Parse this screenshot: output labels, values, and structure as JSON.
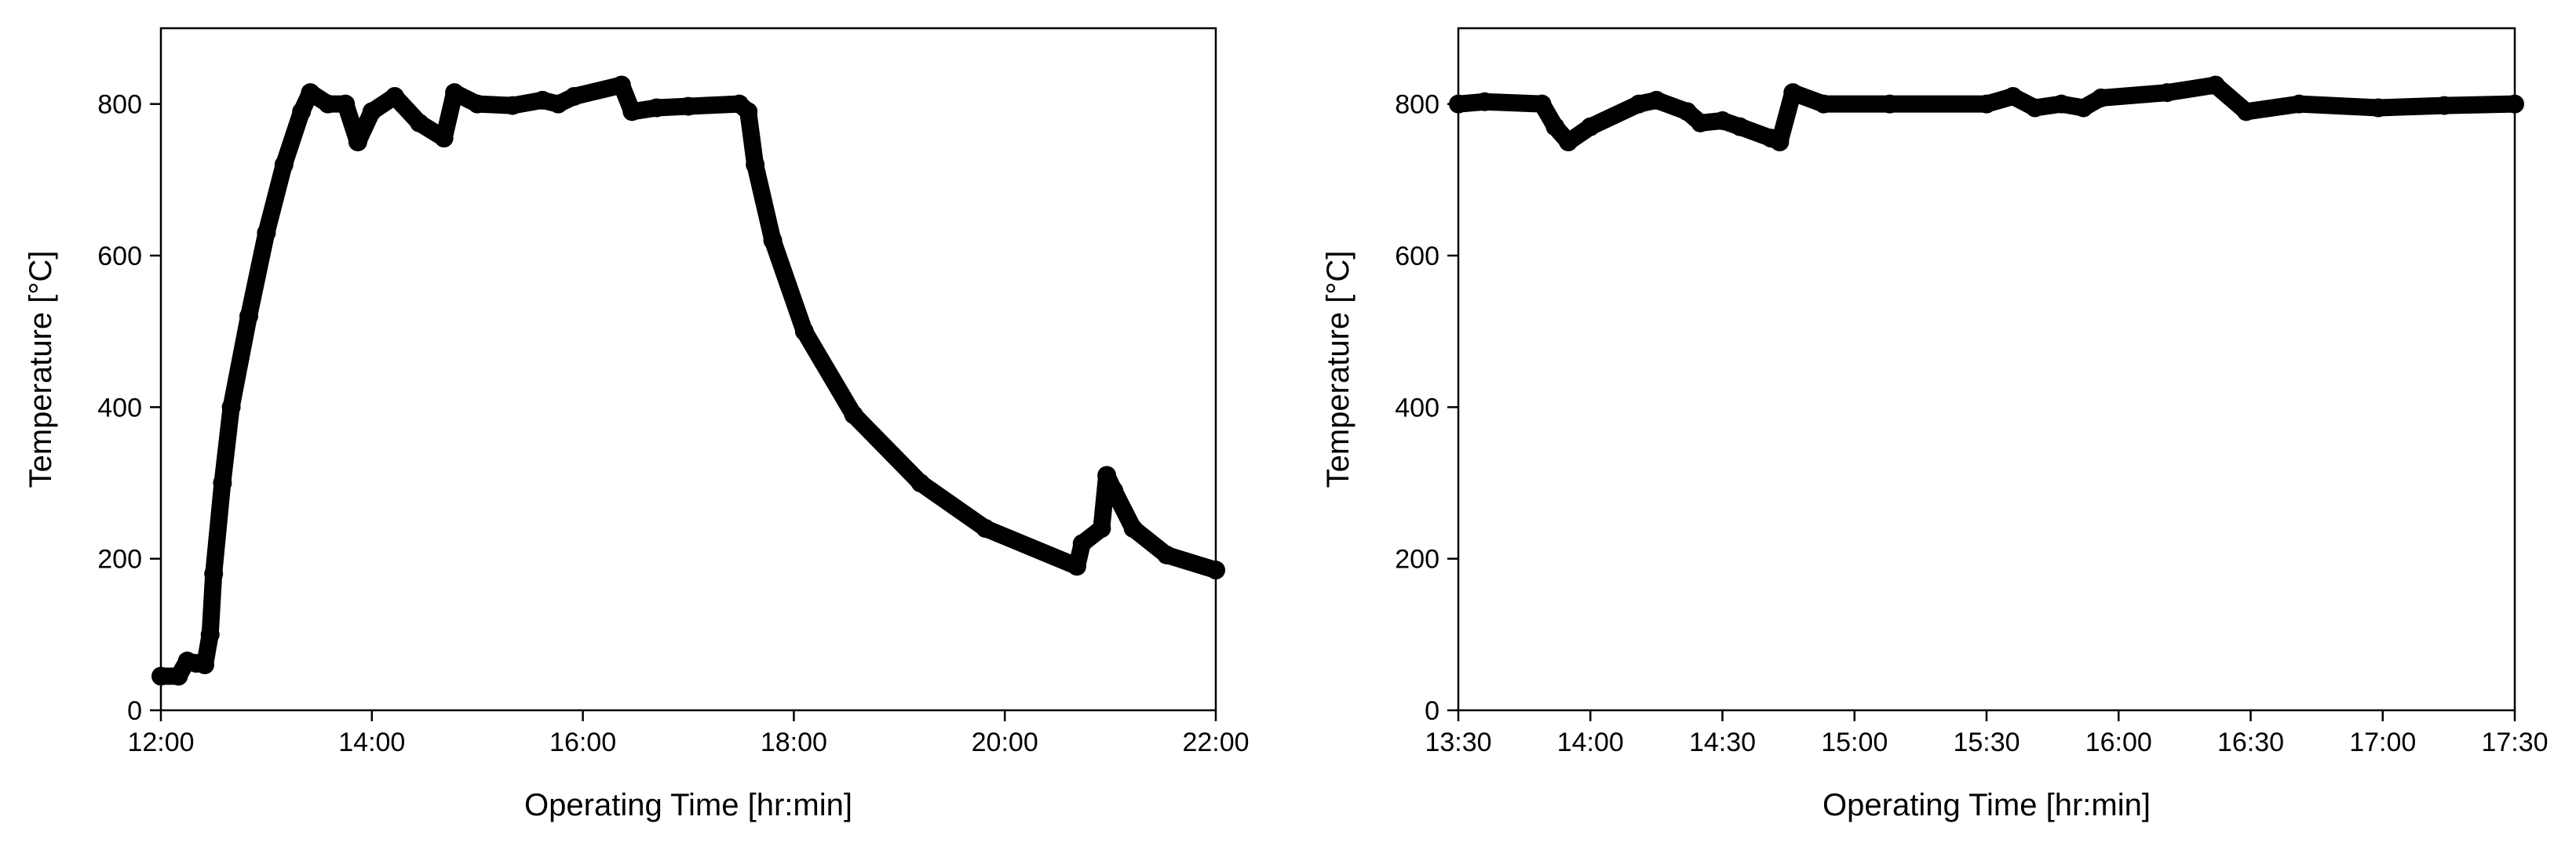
{
  "chart_data": [
    {
      "type": "line",
      "x_label": "Operating Time [hr:min]",
      "y_label": "Temperature [°C]",
      "xlim": [
        "12:00",
        "22:00"
      ],
      "xticks": [
        "12:00",
        "14:00",
        "16:00",
        "18:00",
        "20:00",
        "22:00"
      ],
      "ylim": [
        0,
        900
      ],
      "yticks": [
        0,
        200,
        400,
        600,
        800
      ],
      "series": [
        {
          "color": "#000000",
          "x": [
            "12:00",
            "12:10",
            "12:15",
            "12:20",
            "12:25",
            "12:28",
            "12:30",
            "12:35",
            "12:40",
            "12:50",
            "13:00",
            "13:10",
            "13:20",
            "13:25",
            "13:35",
            "13:45",
            "13:52",
            "14:00",
            "14:13",
            "14:27",
            "14:41",
            "14:47",
            "15:00",
            "15:20",
            "15:37",
            "15:46",
            "15:55",
            "16:22",
            "16:28",
            "16:42",
            "17:00",
            "17:29",
            "17:34",
            "17:38",
            "17:48",
            "18:06",
            "18:34",
            "19:12",
            "19:49",
            "20:41",
            "20:44",
            "20:55",
            "20:58",
            "21:02",
            "21:13",
            "21:32",
            "22:00"
          ],
          "values": [
            45,
            45,
            65,
            62,
            60,
            100,
            180,
            300,
            400,
            520,
            630,
            720,
            790,
            815,
            800,
            800,
            750,
            790,
            810,
            775,
            755,
            815,
            800,
            798,
            805,
            800,
            810,
            825,
            790,
            795,
            797,
            800,
            790,
            720,
            620,
            500,
            390,
            300,
            240,
            190,
            220,
            240,
            310,
            290,
            240,
            205,
            185
          ]
        }
      ]
    },
    {
      "type": "line",
      "x_label": "Operating Time [hr:min]",
      "y_label": "Temperature [°C]",
      "xlim": [
        "13:30",
        "17:30"
      ],
      "xticks": [
        "13:30",
        "14:00",
        "14:30",
        "15:00",
        "15:30",
        "16:00",
        "16:30",
        "17:00",
        "17:30"
      ],
      "ylim": [
        0,
        900
      ],
      "yticks": [
        0,
        200,
        400,
        600,
        800
      ],
      "series": [
        {
          "color": "#000000",
          "x": [
            "13:30",
            "13:36",
            "13:49",
            "13:52",
            "13:55",
            "14:00",
            "14:11",
            "14:15",
            "14:22",
            "14:25",
            "14:30",
            "14:34",
            "14:41",
            "14:43",
            "14:46",
            "14:53",
            "15:08",
            "15:30",
            "15:36",
            "15:41",
            "15:47",
            "15:52",
            "15:56",
            "16:11",
            "16:22",
            "16:29",
            "16:41",
            "16:59",
            "17:14",
            "17:30"
          ],
          "values": [
            800,
            803,
            800,
            770,
            750,
            770,
            800,
            805,
            790,
            775,
            778,
            770,
            755,
            750,
            815,
            800,
            800,
            800,
            810,
            795,
            800,
            795,
            808,
            815,
            825,
            790,
            800,
            795,
            798,
            800
          ]
        }
      ]
    }
  ]
}
